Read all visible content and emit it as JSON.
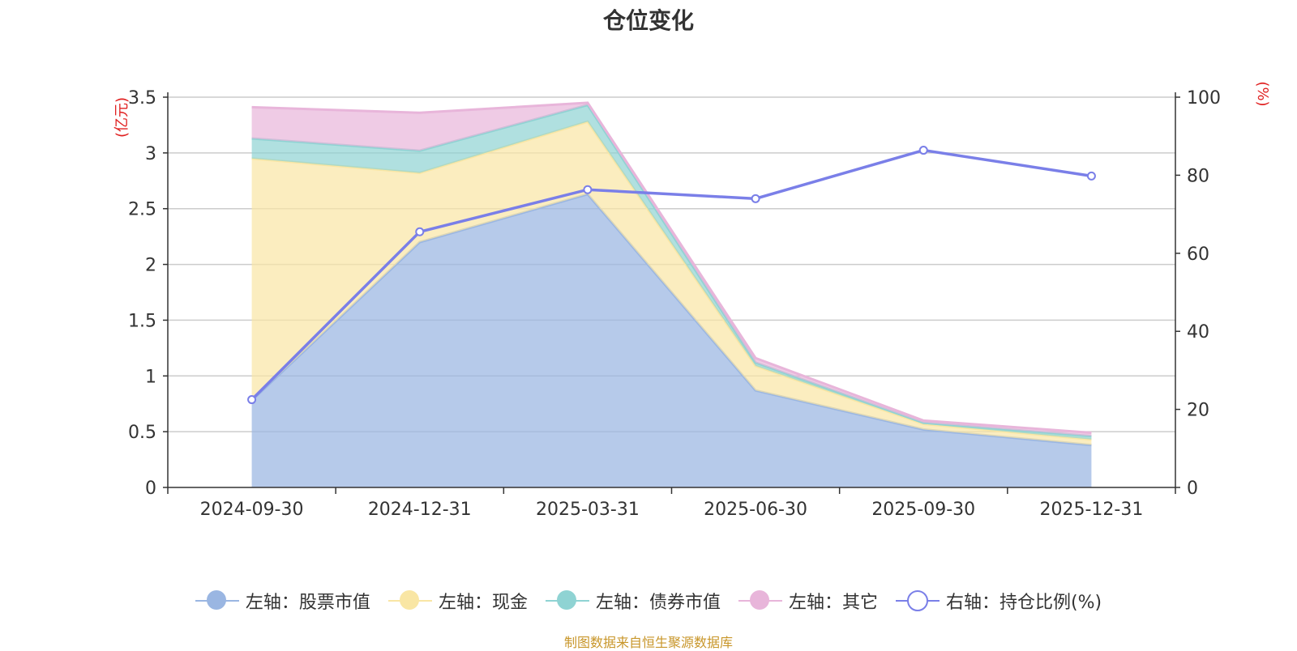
{
  "title": "仓位变化",
  "source_note": "制图数据来自恒生聚源数据库",
  "colors": {
    "stock": "#9ab6e2",
    "cash": "#f9e6a4",
    "bond": "#8fd3d3",
    "other": "#e8b5da",
    "ratio": "#7a7fe8",
    "axis_unit": "#e02020",
    "grid": "#cccccc",
    "text": "#333333"
  },
  "chart_data": {
    "type": "area",
    "categories": [
      "2024-09-30",
      "2024-12-31",
      "2025-03-31",
      "2025-06-30",
      "2025-09-30",
      "2025-12-31"
    ],
    "left_axis": {
      "unit": "(亿元)",
      "ylim": [
        0,
        3.5
      ],
      "ticks": [
        "0",
        "0.5",
        "1",
        "1.5",
        "2",
        "2.5",
        "3",
        "3.5"
      ]
    },
    "right_axis": {
      "unit": "(%)",
      "ylim": [
        0,
        100
      ],
      "ticks": [
        "0",
        "20",
        "40",
        "60",
        "80",
        "100"
      ]
    },
    "series": [
      {
        "name": "左轴：股票市值",
        "axis": "left",
        "stack": true,
        "values": [
          0.78,
          2.2,
          2.63,
          0.87,
          0.52,
          0.38
        ]
      },
      {
        "name": "左轴：现金",
        "axis": "left",
        "stack": true,
        "values": [
          2.17,
          0.62,
          0.65,
          0.22,
          0.05,
          0.05
        ]
      },
      {
        "name": "左轴：债券市值",
        "axis": "left",
        "stack": true,
        "values": [
          0.18,
          0.2,
          0.15,
          0.03,
          0.01,
          0.03
        ]
      },
      {
        "name": "左轴：其它",
        "axis": "left",
        "stack": true,
        "values": [
          0.28,
          0.34,
          0.02,
          0.04,
          0.02,
          0.03
        ]
      },
      {
        "name": "右轴：持仓比例(%)",
        "axis": "right",
        "stack": false,
        "values": [
          22.5,
          65.5,
          76.3,
          74.0,
          86.4,
          79.8
        ]
      }
    ]
  }
}
